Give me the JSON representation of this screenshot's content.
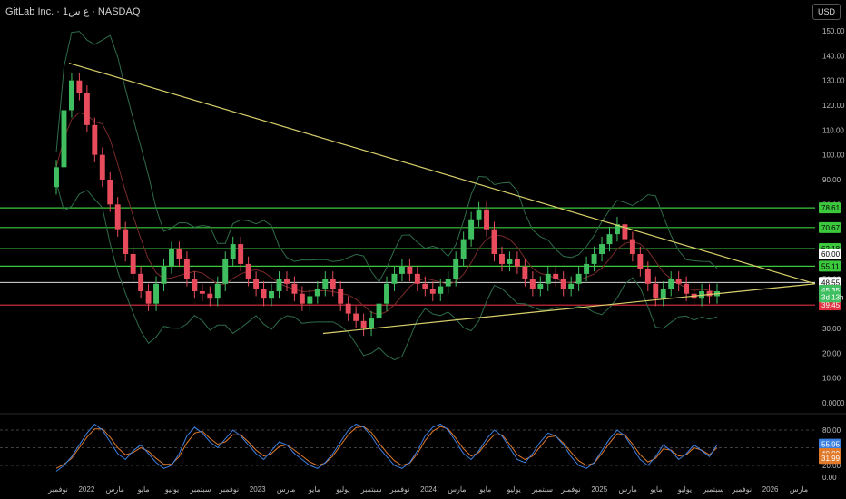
{
  "header": {
    "title": "GitLab Inc. · 1ع س · NASDAQ",
    "currency": "USD"
  },
  "colors": {
    "up": "#3fbf5f",
    "down": "#e84b5b",
    "level": "#3cc83c",
    "trendline": "#d8cf6a",
    "band": "#2e6b4a",
    "basis": "#7a2a2a",
    "stoch_k": "#3a7fe0",
    "stoch_d": "#e07a2a",
    "current": "#ffffff",
    "support": "#e03040"
  },
  "chart_data": [
    {
      "type": "candlestick",
      "title": "GitLab Inc. · 1ع س · NASDAQ",
      "y_ticks": [
        "150.00",
        "140.00",
        "130.00",
        "120.00",
        "110.00",
        "100.00",
        "90.00",
        "80.00",
        "70.00",
        "60.00",
        "50.00",
        "40.00",
        "30.00",
        "20.00",
        "10.00",
        "0.0000"
      ],
      "ylim": [
        0,
        150
      ],
      "x_ticks": [
        "نوفمبر",
        "2022",
        "مارس",
        "مايو",
        "يوليو",
        "سبتمبر",
        "نوفمبر",
        "2023",
        "مارس",
        "مايو",
        "يوليو",
        "سبتمبر",
        "نوفمبر",
        "2024",
        "مارس",
        "مايو",
        "يوليو",
        "سبتمبر",
        "نوفمبر",
        "2025",
        "مارس",
        "مايو",
        "يوليو",
        "سبتمبر",
        "نوفمبر",
        "2026",
        "مارس"
      ],
      "horizontal_levels": [
        {
          "label": "78.61",
          "value": 78.61,
          "color": "#3cc83c"
        },
        {
          "label": "70.67",
          "value": 70.67,
          "color": "#3cc83c"
        },
        {
          "label": "62.18",
          "value": 62.18,
          "color": "#3cc83c"
        },
        {
          "label": "55.11",
          "value": 55.11,
          "color": "#3cc83c"
        },
        {
          "label": "39.45",
          "value": 39.45,
          "color": "#e03040"
        }
      ],
      "price_labels": [
        {
          "label": "48.55",
          "value": 48.55
        },
        {
          "label": "45.35",
          "value": 45.35
        },
        {
          "label": "3d 13h",
          "value": 42.7
        },
        {
          "label": "60.00",
          "value": 60.0
        }
      ],
      "trendlines": [
        {
          "from": [
            "2021-11",
            137
          ],
          "to": [
            "2026-04",
            48
          ]
        },
        {
          "from": [
            "2023-05",
            28
          ],
          "to": [
            "2026-04",
            48
          ]
        }
      ],
      "close_series": [
        {
          "t": 0,
          "v": 95
        },
        {
          "t": 1,
          "v": 118
        },
        {
          "t": 2,
          "v": 130
        },
        {
          "t": 3,
          "v": 125
        },
        {
          "t": 4,
          "v": 112
        },
        {
          "t": 5,
          "v": 100
        },
        {
          "t": 6,
          "v": 90
        },
        {
          "t": 7,
          "v": 80
        },
        {
          "t": 8,
          "v": 70
        },
        {
          "t": 9,
          "v": 60
        },
        {
          "t": 10,
          "v": 52
        },
        {
          "t": 11,
          "v": 45
        },
        {
          "t": 12,
          "v": 40
        },
        {
          "t": 13,
          "v": 48
        },
        {
          "t": 14,
          "v": 55
        },
        {
          "t": 15,
          "v": 62
        },
        {
          "t": 16,
          "v": 58
        },
        {
          "t": 17,
          "v": 50
        },
        {
          "t": 18,
          "v": 45
        },
        {
          "t": 19,
          "v": 44
        },
        {
          "t": 20,
          "v": 42
        },
        {
          "t": 21,
          "v": 48
        },
        {
          "t": 22,
          "v": 58
        },
        {
          "t": 23,
          "v": 64
        },
        {
          "t": 24,
          "v": 56
        },
        {
          "t": 25,
          "v": 50
        },
        {
          "t": 26,
          "v": 46
        },
        {
          "t": 27,
          "v": 42
        },
        {
          "t": 28,
          "v": 45
        },
        {
          "t": 29,
          "v": 50
        },
        {
          "t": 30,
          "v": 48
        },
        {
          "t": 31,
          "v": 44
        },
        {
          "t": 32,
          "v": 40
        },
        {
          "t": 33,
          "v": 43
        },
        {
          "t": 34,
          "v": 46
        },
        {
          "t": 35,
          "v": 50
        },
        {
          "t": 36,
          "v": 46
        },
        {
          "t": 37,
          "v": 40
        },
        {
          "t": 38,
          "v": 36
        },
        {
          "t": 39,
          "v": 33
        },
        {
          "t": 40,
          "v": 30
        },
        {
          "t": 41,
          "v": 34
        },
        {
          "t": 42,
          "v": 40
        },
        {
          "t": 43,
          "v": 48
        },
        {
          "t": 44,
          "v": 52
        },
        {
          "t": 45,
          "v": 55
        },
        {
          "t": 46,
          "v": 52
        },
        {
          "t": 47,
          "v": 48
        },
        {
          "t": 48,
          "v": 46
        },
        {
          "t": 49,
          "v": 44
        },
        {
          "t": 50,
          "v": 47
        },
        {
          "t": 51,
          "v": 50
        },
        {
          "t": 52,
          "v": 58
        },
        {
          "t": 53,
          "v": 66
        },
        {
          "t": 54,
          "v": 74
        },
        {
          "t": 55,
          "v": 78
        },
        {
          "t": 56,
          "v": 70
        },
        {
          "t": 57,
          "v": 60
        },
        {
          "t": 58,
          "v": 56
        },
        {
          "t": 59,
          "v": 58
        },
        {
          "t": 60,
          "v": 55
        },
        {
          "t": 61,
          "v": 50
        },
        {
          "t": 62,
          "v": 46
        },
        {
          "t": 63,
          "v": 48
        },
        {
          "t": 64,
          "v": 52
        },
        {
          "t": 65,
          "v": 50
        },
        {
          "t": 66,
          "v": 46
        },
        {
          "t": 67,
          "v": 48
        },
        {
          "t": 68,
          "v": 52
        },
        {
          "t": 69,
          "v": 56
        },
        {
          "t": 70,
          "v": 60
        },
        {
          "t": 71,
          "v": 64
        },
        {
          "t": 72,
          "v": 68
        },
        {
          "t": 73,
          "v": 72
        },
        {
          "t": 74,
          "v": 66
        },
        {
          "t": 75,
          "v": 60
        },
        {
          "t": 76,
          "v": 54
        },
        {
          "t": 77,
          "v": 48
        },
        {
          "t": 78,
          "v": 42
        },
        {
          "t": 79,
          "v": 46
        },
        {
          "t": 80,
          "v": 50
        },
        {
          "t": 81,
          "v": 48
        },
        {
          "t": 82,
          "v": 44
        },
        {
          "t": 83,
          "v": 42
        },
        {
          "t": 84,
          "v": 45
        },
        {
          "t": 85,
          "v": 43
        },
        {
          "t": 86,
          "v": 45
        }
      ]
    },
    {
      "type": "line",
      "title": "",
      "y_ticks": [
        "80.00",
        "60.00",
        "40.00",
        "20.00",
        "0.00"
      ],
      "ylim": [
        0,
        100
      ],
      "value_labels": [
        {
          "label": "55.95",
          "value": 55.95,
          "color": "#3a7fe0"
        },
        {
          "label": "40.00",
          "value": 40.0,
          "color": "#e07a2a"
        },
        {
          "label": "31.99",
          "value": 31.99,
          "color": "#e07a2a"
        }
      ],
      "series": [
        {
          "values": [
            10,
            20,
            35,
            55,
            75,
            90,
            80,
            60,
            40,
            30,
            45,
            55,
            40,
            25,
            15,
            20,
            40,
            70,
            85,
            75,
            60,
            50,
            65,
            80,
            70,
            55,
            40,
            30,
            45,
            60,
            55,
            40,
            30,
            20,
            15,
            25,
            40,
            60,
            80,
            90,
            85,
            70,
            50,
            35,
            20,
            15,
            25,
            45,
            70,
            85,
            90,
            80,
            60,
            40,
            30,
            45,
            65,
            80,
            70,
            50,
            30,
            25,
            40,
            60,
            75,
            70,
            55,
            35,
            20,
            15,
            25,
            45,
            65,
            80,
            70,
            50,
            30,
            20,
            35,
            55,
            45,
            30,
            40,
            55,
            45,
            35,
            55
          ]
        },
        {
          "values": [
            15,
            22,
            32,
            50,
            68,
            82,
            82,
            68,
            50,
            38,
            42,
            50,
            44,
            32,
            22,
            22,
            35,
            58,
            75,
            78,
            66,
            56,
            60,
            72,
            72,
            60,
            46,
            36,
            40,
            52,
            55,
            46,
            36,
            26,
            20,
            24,
            36,
            54,
            72,
            84,
            86,
            76,
            58,
            42,
            28,
            20,
            24,
            40,
            62,
            78,
            86,
            82,
            66,
            48,
            36,
            42,
            58,
            72,
            72,
            56,
            38,
            30,
            36,
            52,
            68,
            70,
            58,
            42,
            28,
            20,
            24,
            40,
            58,
            74,
            72,
            56,
            38,
            26,
            32,
            48,
            46,
            36,
            38,
            50,
            46,
            38,
            50
          ]
        }
      ]
    }
  ]
}
